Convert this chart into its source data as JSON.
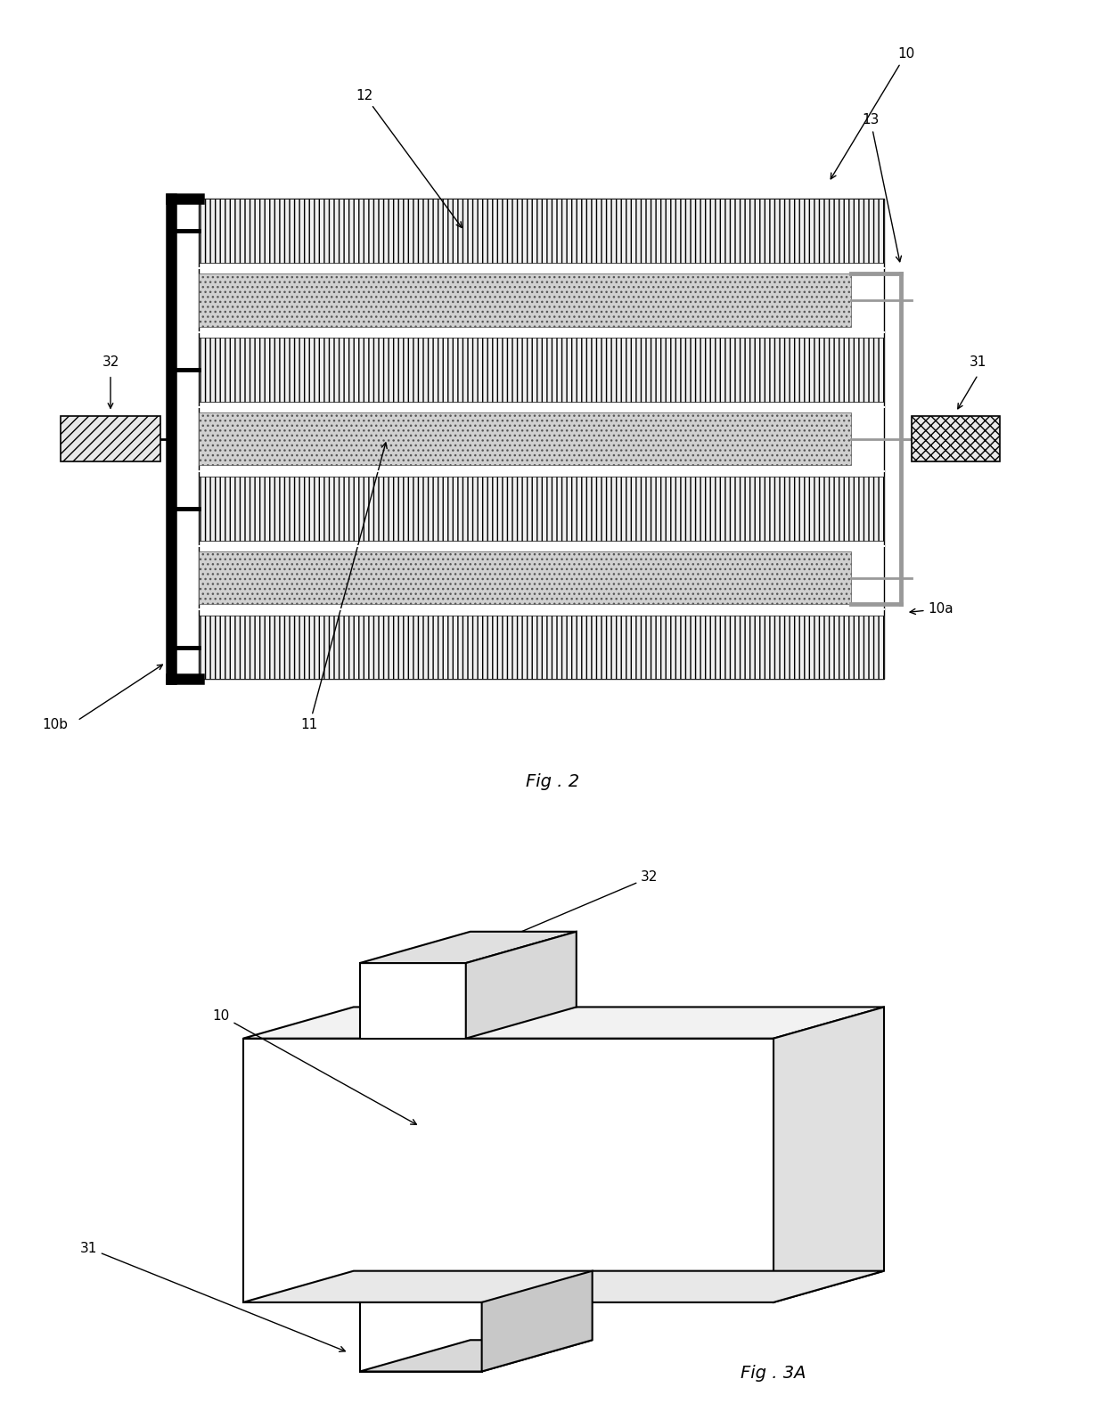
{
  "fig_width": 12.4,
  "fig_height": 16.03,
  "bg_color": "#ffffff",
  "line_color": "#000000",
  "fig2_label": "Fig . 2",
  "fig3a_label": "Fig . 3A"
}
